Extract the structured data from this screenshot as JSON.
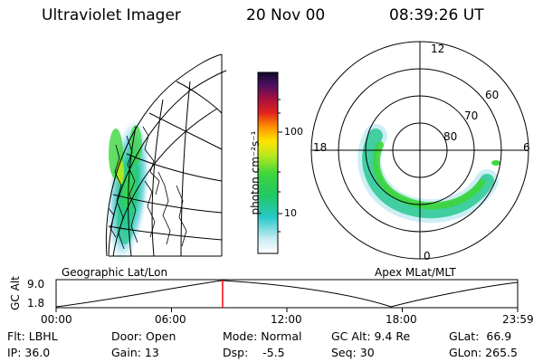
{
  "header": {
    "instrument": "Ultraviolet Imager",
    "date": "20 Nov 00",
    "time": "08:39:26 UT"
  },
  "geo_panel": {
    "label": "Geographic Lat/Lon"
  },
  "colorbar": {
    "unit_label": "photon cm⁻²s⁻¹",
    "tick_labels": [
      "100",
      "10"
    ]
  },
  "polar_panel": {
    "label": "Apex MLat/MLT",
    "mlt_labels": {
      "top": "12",
      "left": "18",
      "right": "6",
      "bottom": "0"
    },
    "lat_labels": [
      "60",
      "70",
      "80"
    ]
  },
  "altitude_plot": {
    "ylabel": "GC Alt",
    "y_ticks": [
      "9.0",
      "1.8"
    ],
    "x_ticks": [
      "00:00",
      "06:00",
      "12:00",
      "18:00",
      "23:59"
    ],
    "current_time_fraction": 0.3607
  },
  "status": {
    "row1": [
      "Flt: LBHL",
      "Door: Open",
      "Mode: Normal",
      "GC Alt: 9.4 Re",
      "GLat:  66.9"
    ],
    "row2": [
      "IP: 36.0",
      "Gain: 13",
      "Dsp:    -5.5",
      "Seq: 30",
      "GLon: 265.5"
    ]
  },
  "colors": {
    "marker": "#ff0000",
    "aurora_outer": "#c8ecf4",
    "aurora_mid": "#22c8a0",
    "aurora_core": "#3dd63d",
    "aurora_peak": "#b8e81c"
  }
}
